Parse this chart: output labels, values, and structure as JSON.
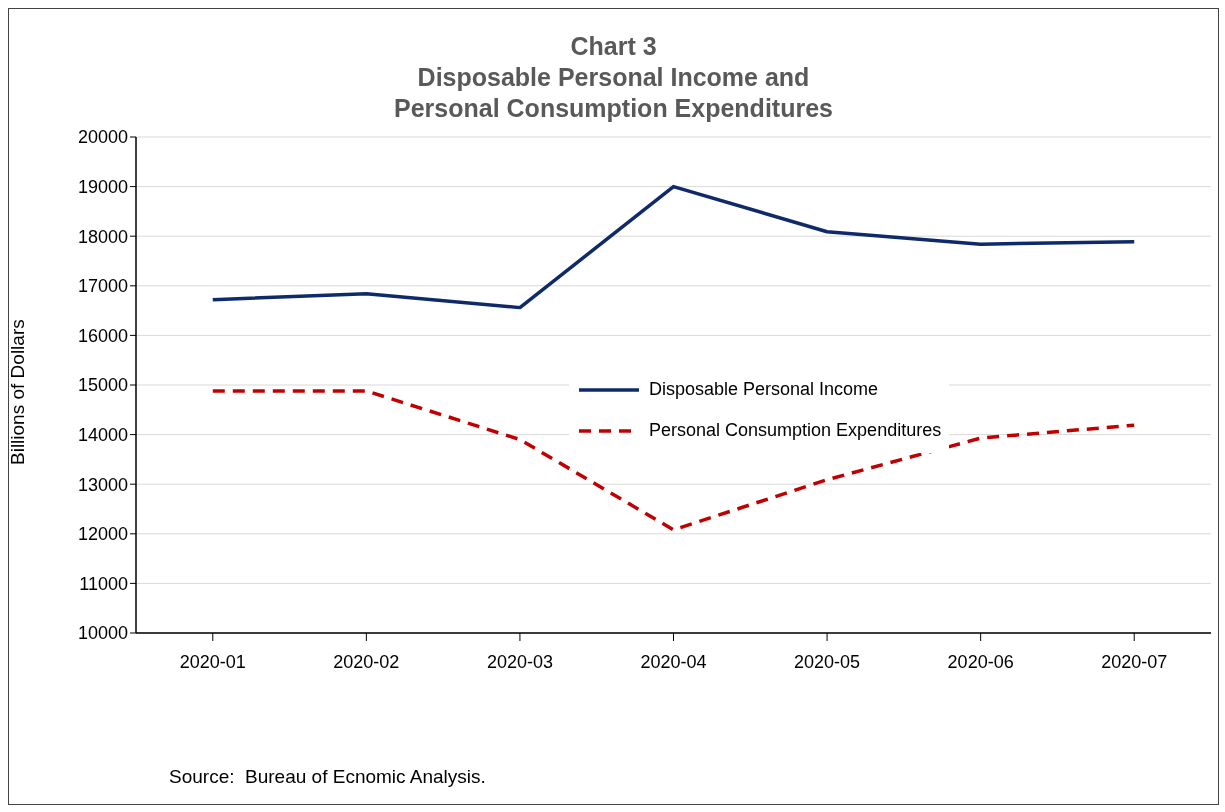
{
  "chart_data": {
    "type": "line",
    "title": "Chart 3\nDisposable Personal Income and\nPersonal Consumption Expenditures",
    "ylabel": "Billions of Dollars",
    "categories": [
      "2020-01",
      "2020-02",
      "2020-03",
      "2020-04",
      "2020-05",
      "2020-06",
      "2020-07"
    ],
    "series": [
      {
        "name": "Disposable Personal Income",
        "color": "#0f2a6b",
        "line_style": "solid",
        "values": [
          16720,
          16840,
          16560,
          19000,
          18090,
          17840,
          17890
        ]
      },
      {
        "name": "Personal Consumption Expenditures",
        "color": "#c00000",
        "line_style": "dashed",
        "values": [
          14880,
          14880,
          13900,
          12080,
          13090,
          13930,
          14190
        ]
      }
    ],
    "ylim": [
      10000,
      20000
    ],
    "yticks": [
      10000,
      11000,
      12000,
      13000,
      14000,
      15000,
      16000,
      17000,
      18000,
      19000,
      20000
    ],
    "grid": "y",
    "legend": "center",
    "annotations": [
      "Source:  Bureau of Ecnomic Analysis."
    ]
  }
}
